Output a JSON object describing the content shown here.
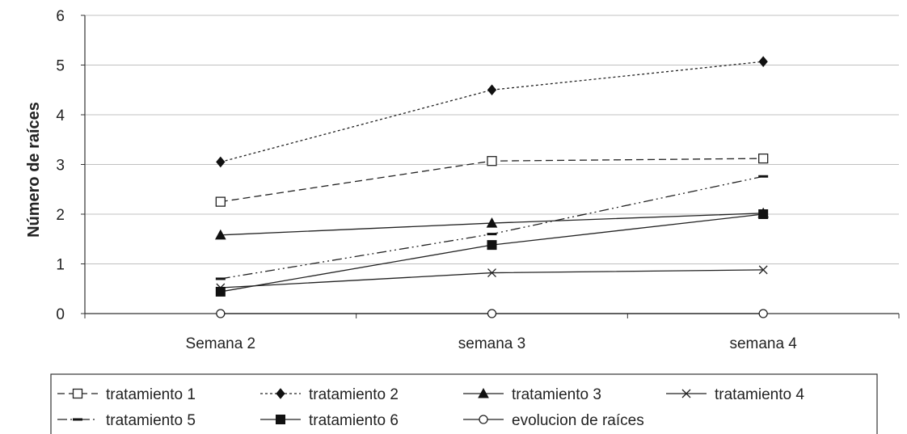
{
  "chart_data": {
    "type": "line",
    "ylabel": "Número de raíces",
    "xlabel": "",
    "categories": [
      "Semana 2",
      "semana 3",
      "semana 4"
    ],
    "ylim": [
      0,
      6
    ],
    "yticks": [
      0,
      1,
      2,
      3,
      4,
      5,
      6
    ],
    "grid": "horizontal",
    "legend_position": "bottom",
    "series": [
      {
        "name": "tratamiento 1",
        "values": [
          2.25,
          3.07,
          3.12
        ],
        "marker": "square-open",
        "dash": "dashed"
      },
      {
        "name": "tratamiento 2",
        "values": [
          3.05,
          4.5,
          5.07
        ],
        "marker": "diamond-filled",
        "dash": "dotted"
      },
      {
        "name": "tratamiento 3",
        "values": [
          1.58,
          1.82,
          2.02
        ],
        "marker": "triangle-filled",
        "dash": "solid"
      },
      {
        "name": "tratamiento 4",
        "values": [
          0.52,
          0.82,
          0.88
        ],
        "marker": "x",
        "dash": "solid"
      },
      {
        "name": "tratamiento 5",
        "values": [
          0.7,
          1.6,
          2.76
        ],
        "marker": "dash",
        "dash": "dashdotdot"
      },
      {
        "name": "tratamiento 6",
        "values": [
          0.44,
          1.38,
          2.0
        ],
        "marker": "square-filled",
        "dash": "solid"
      },
      {
        "name": "evolucion de raíces",
        "values": [
          0.0,
          0.0,
          0.0
        ],
        "marker": "circle-open",
        "dash": "solid"
      }
    ]
  }
}
